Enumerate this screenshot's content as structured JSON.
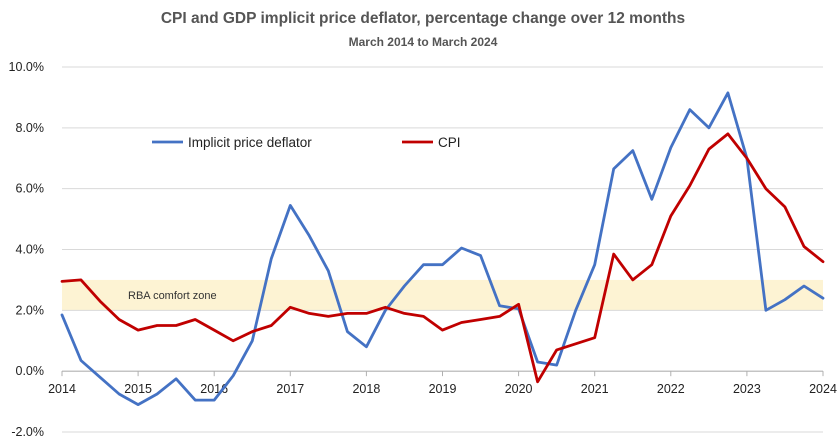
{
  "chart_data": {
    "type": "line",
    "title": "CPI and GDP implicit price deflator, percentage change over 12 months",
    "subtitle": "March 2014 to March 2024",
    "xlabel": "",
    "ylabel": "",
    "xlim": [
      2014,
      2024
    ],
    "ylim": [
      -2,
      10
    ],
    "y_ticks": [
      -2,
      0,
      2,
      4,
      6,
      8,
      10
    ],
    "y_tick_labels": [
      "-2.0%",
      "0.0%",
      "2.0%",
      "4.0%",
      "6.0%",
      "8.0%",
      "10.0%"
    ],
    "x_ticks": [
      2014,
      2015,
      2016,
      2017,
      2018,
      2019,
      2020,
      2021,
      2022,
      2023,
      2024
    ],
    "x_tick_labels": [
      "2014",
      "2015",
      "2016",
      "2017",
      "2018",
      "2019",
      "2020",
      "2021",
      "2022",
      "2023",
      "2024"
    ],
    "grid": "horizontal",
    "legend_position": "top-left",
    "band": {
      "label": "RBA comfort zone",
      "from": 2,
      "to": 3,
      "color": "#fdf3d3"
    },
    "x": [
      2014,
      2014.25,
      2014.5,
      2014.75,
      2015,
      2015.25,
      2015.5,
      2015.75,
      2016,
      2016.25,
      2016.5,
      2016.75,
      2017,
      2017.25,
      2017.5,
      2017.75,
      2018,
      2018.25,
      2018.5,
      2018.75,
      2019,
      2019.25,
      2019.5,
      2019.75,
      2020,
      2020.25,
      2020.5,
      2020.75,
      2021,
      2021.25,
      2021.5,
      2021.75,
      2022,
      2022.25,
      2022.5,
      2022.75,
      2023,
      2023.25,
      2023.5,
      2023.75,
      2024
    ],
    "series": [
      {
        "name": "Implicit price deflator",
        "color": "#4472c4",
        "values": [
          1.85,
          0.35,
          -0.2,
          -0.75,
          -1.1,
          -0.75,
          -0.25,
          -0.95,
          -0.95,
          -0.15,
          1.0,
          3.7,
          5.45,
          4.45,
          3.3,
          1.3,
          0.8,
          2.0,
          2.8,
          3.5,
          3.5,
          4.05,
          3.8,
          2.15,
          2.05,
          0.3,
          0.2,
          2.0,
          3.5,
          6.65,
          7.25,
          5.65,
          7.35,
          8.6,
          8.0,
          9.15,
          7.0,
          2.0,
          2.35,
          2.8,
          2.4
        ]
      },
      {
        "name": "CPI",
        "color": "#c00000",
        "values": [
          2.95,
          3.0,
          2.3,
          1.7,
          1.35,
          1.5,
          1.5,
          1.7,
          1.35,
          1.0,
          1.3,
          1.5,
          2.1,
          1.9,
          1.8,
          1.9,
          1.9,
          2.1,
          1.9,
          1.8,
          1.35,
          1.6,
          1.7,
          1.8,
          2.2,
          -0.35,
          0.7,
          0.9,
          1.1,
          3.85,
          3.0,
          3.5,
          5.1,
          6.1,
          7.3,
          7.8,
          7.0,
          6.0,
          5.4,
          4.1,
          3.6
        ]
      }
    ]
  }
}
